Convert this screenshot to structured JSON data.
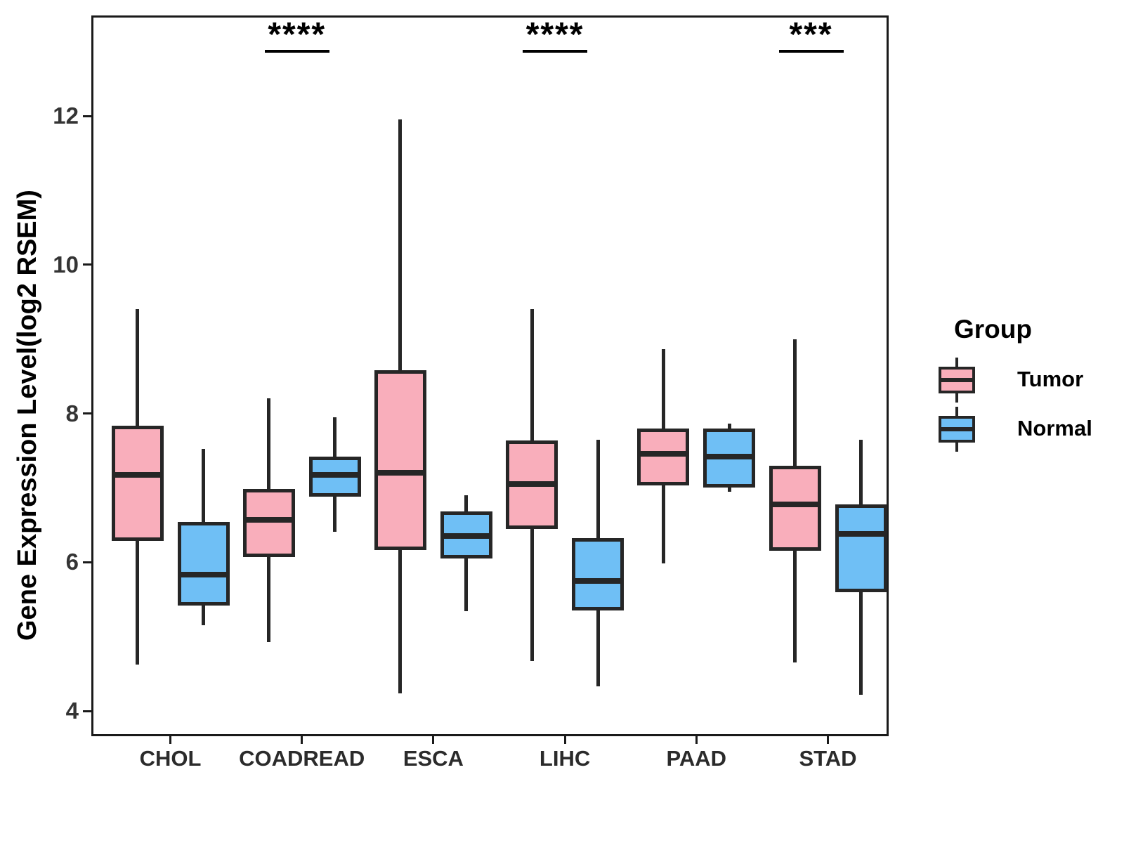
{
  "axes": {
    "y_label": "Gene Expression Level(log2 RSEM)",
    "y_ticks": [
      4,
      6,
      8,
      10,
      12
    ],
    "y_range": [
      3.65,
      13.35
    ],
    "x_categories": [
      "CHOL",
      "COADREAD",
      "ESCA",
      "LIHC",
      "PAAD",
      "STAD"
    ]
  },
  "legend": {
    "title": "Group",
    "items": [
      {
        "label": "Tumor",
        "color": "#F9AEBB"
      },
      {
        "label": "Normal",
        "color": "#6FBFF5"
      }
    ]
  },
  "chart_data": {
    "type": "boxplot",
    "title": "",
    "ylabel": "Gene Expression Level(log2 RSEM)",
    "ylim": [
      3.65,
      13.35
    ],
    "grid": false,
    "legend_position": "right",
    "categories": [
      "CHOL",
      "COADREAD",
      "ESCA",
      "LIHC",
      "PAAD",
      "STAD"
    ],
    "series": [
      {
        "name": "Tumor",
        "color": "#F9AEBB",
        "boxes": [
          {
            "category": "CHOL",
            "whisker_low": 4.62,
            "q1": 6.29,
            "median": 7.17,
            "q3": 7.83,
            "whisker_high": 9.4
          },
          {
            "category": "COADREAD",
            "whisker_low": 4.93,
            "q1": 6.07,
            "median": 6.57,
            "q3": 6.98,
            "whisker_high": 8.2
          },
          {
            "category": "ESCA",
            "whisker_low": 4.24,
            "q1": 6.16,
            "median": 7.2,
            "q3": 8.58,
            "whisker_high": 11.95
          },
          {
            "category": "LIHC",
            "whisker_low": 4.67,
            "q1": 6.45,
            "median": 7.05,
            "q3": 7.64,
            "whisker_high": 9.4
          },
          {
            "category": "PAAD",
            "whisker_low": 5.98,
            "q1": 7.03,
            "median": 7.46,
            "q3": 7.8,
            "whisker_high": 8.86
          },
          {
            "category": "STAD",
            "whisker_low": 4.65,
            "q1": 6.15,
            "median": 6.78,
            "q3": 7.3,
            "whisker_high": 9.0
          }
        ]
      },
      {
        "name": "Normal",
        "color": "#6FBFF5",
        "boxes": [
          {
            "category": "CHOL",
            "whisker_low": 5.15,
            "q1": 5.42,
            "median": 5.83,
            "q3": 6.54,
            "whisker_high": 7.52
          },
          {
            "category": "COADREAD",
            "whisker_low": 6.41,
            "q1": 6.88,
            "median": 7.17,
            "q3": 7.42,
            "whisker_high": 7.95
          },
          {
            "category": "ESCA",
            "whisker_low": 5.34,
            "q1": 6.05,
            "median": 6.35,
            "q3": 6.68,
            "whisker_high": 6.9
          },
          {
            "category": "LIHC",
            "whisker_low": 4.33,
            "q1": 5.35,
            "median": 5.75,
            "q3": 6.32,
            "whisker_high": 7.65
          },
          {
            "category": "PAAD",
            "whisker_low": 6.95,
            "q1": 7.0,
            "median": 7.42,
            "q3": 7.8,
            "whisker_high": 7.86
          },
          {
            "category": "STAD",
            "whisker_low": 4.22,
            "q1": 5.6,
            "median": 6.38,
            "q3": 6.78,
            "whisker_high": 7.65
          }
        ]
      }
    ],
    "significance": [
      {
        "category": "COADREAD",
        "label": "****"
      },
      {
        "category": "LIHC",
        "label": "****"
      },
      {
        "category": "STAD",
        "label": "***"
      }
    ]
  }
}
